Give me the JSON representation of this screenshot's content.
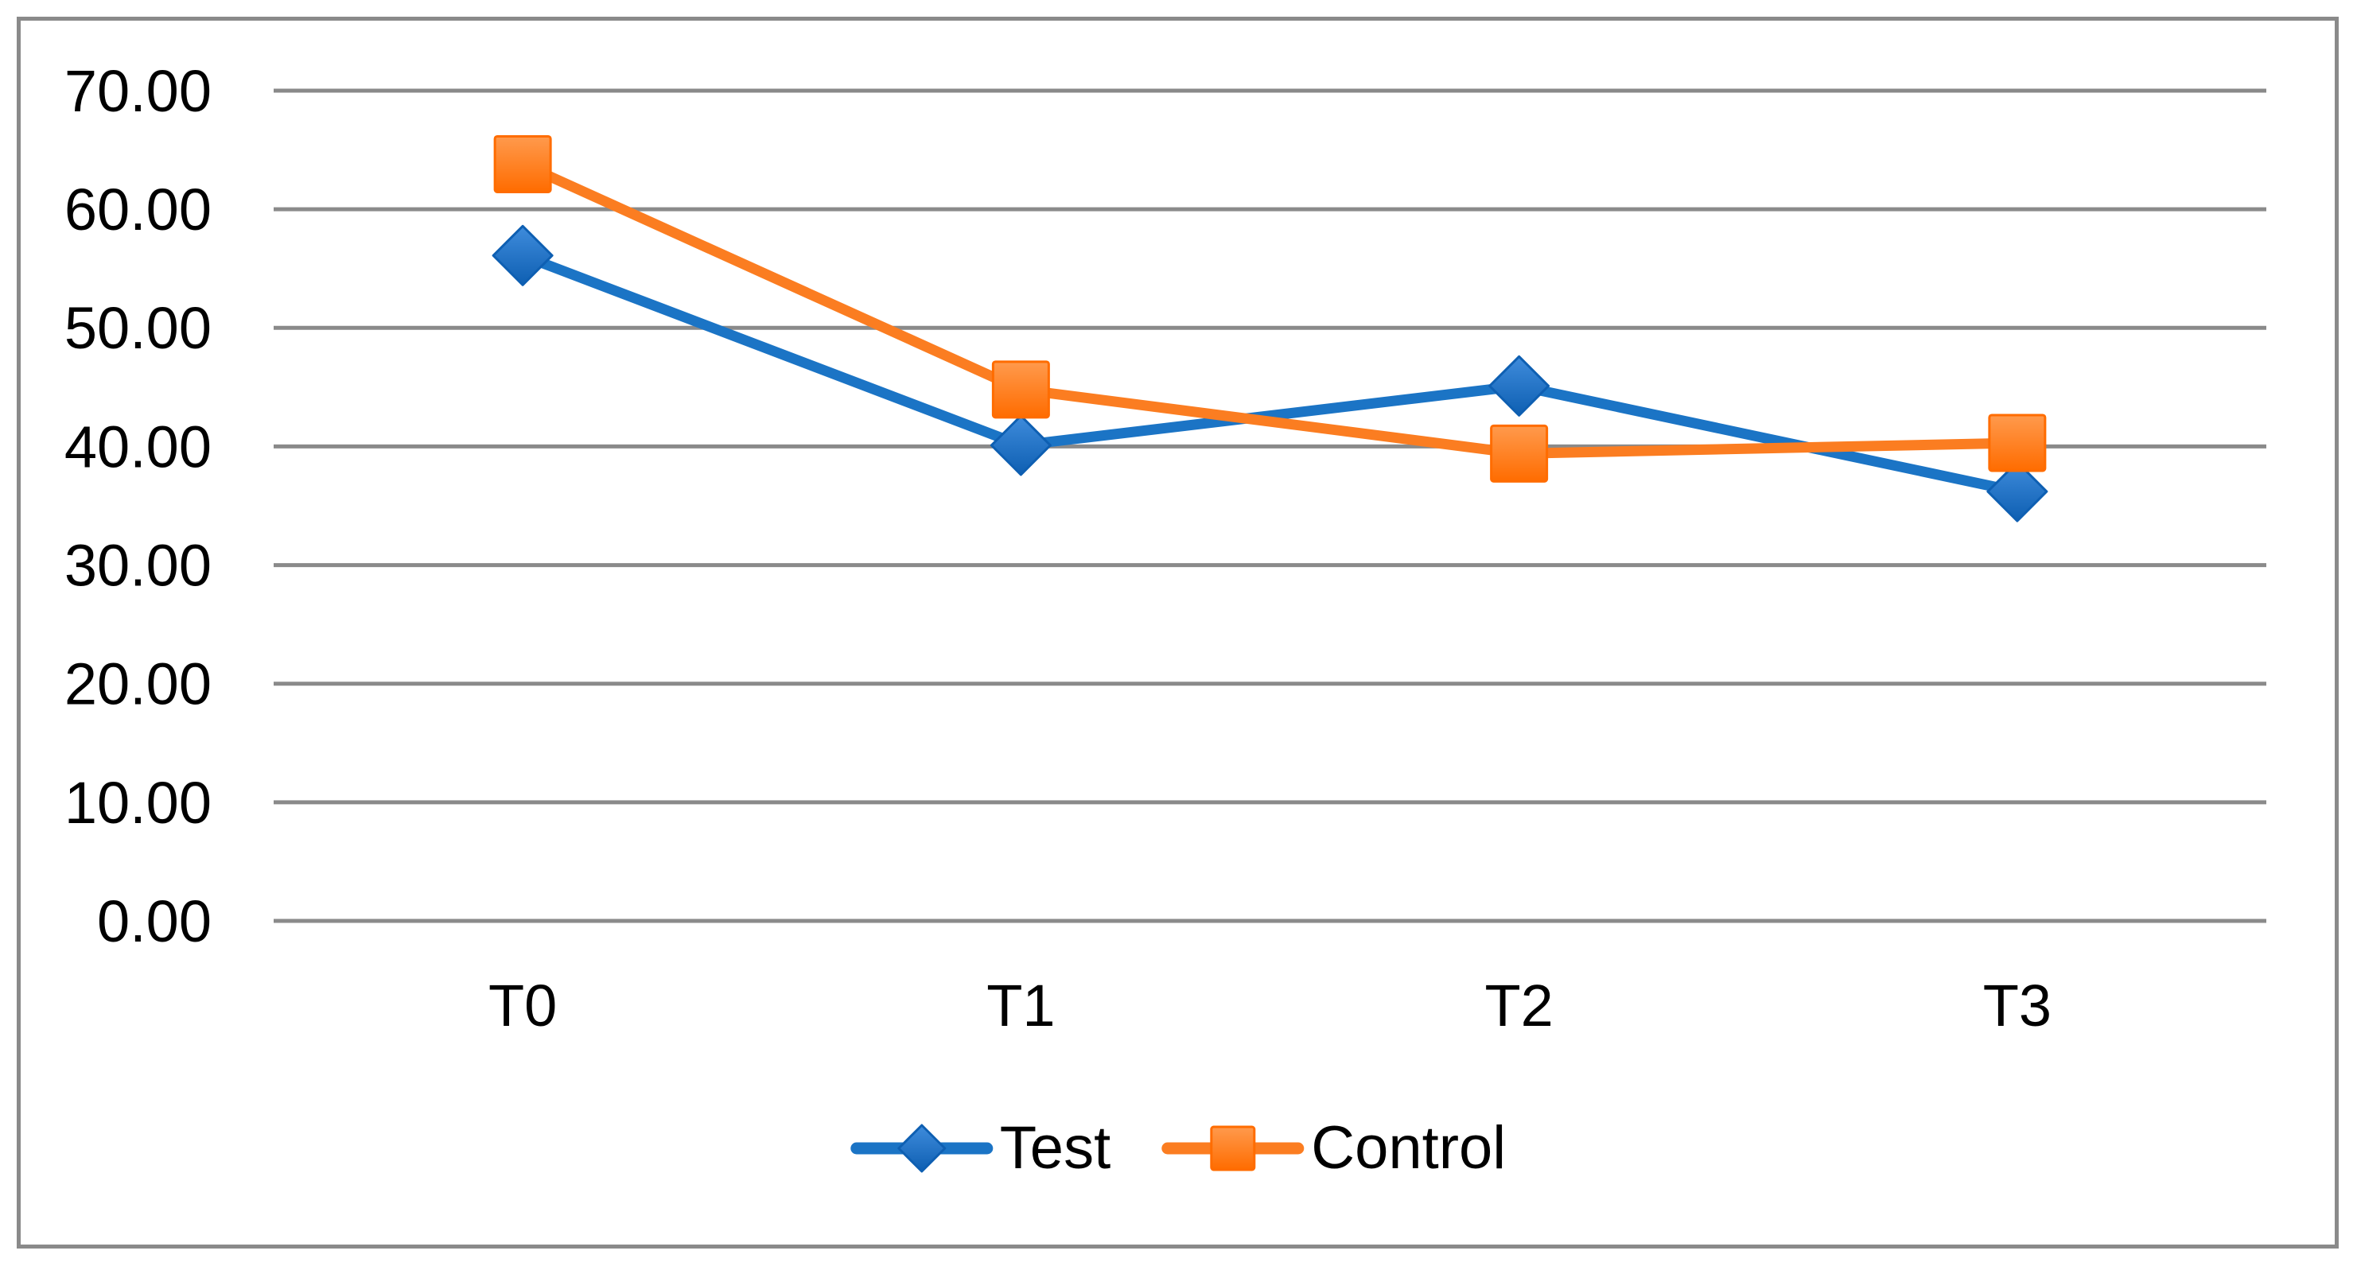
{
  "figure": {
    "background_color": "#FFFFFF",
    "frame_border_color": "#8A8A8A"
  },
  "chart_data": {
    "type": "line",
    "title": "",
    "xlabel": "",
    "ylabel": "",
    "categories": [
      "T0",
      "T1",
      "T2",
      "T3"
    ],
    "series": [
      {
        "name": "Test",
        "color": "#1B74C5",
        "marker": "diamond",
        "marker_gradient": [
          "#3F8CDC",
          "#0E5FB2"
        ],
        "values": [
          56.1,
          40.1,
          45.1,
          36.2
        ]
      },
      {
        "name": "Control",
        "color": "#FB7D21",
        "marker": "square",
        "marker_gradient": [
          "#FF9A4D",
          "#FF6C00"
        ],
        "values": [
          63.8,
          44.8,
          39.4,
          40.3
        ]
      }
    ],
    "ylim": [
      0,
      70
    ],
    "ytick_step": 10,
    "ytick_labels": [
      "0.00",
      "10.00",
      "20.00",
      "30.00",
      "40.00",
      "50.00",
      "60.00",
      "70.00"
    ],
    "grid": true,
    "gridline_color": "#8A8A8A",
    "axis_text_color": "#000000",
    "legend_position": "bottom"
  }
}
